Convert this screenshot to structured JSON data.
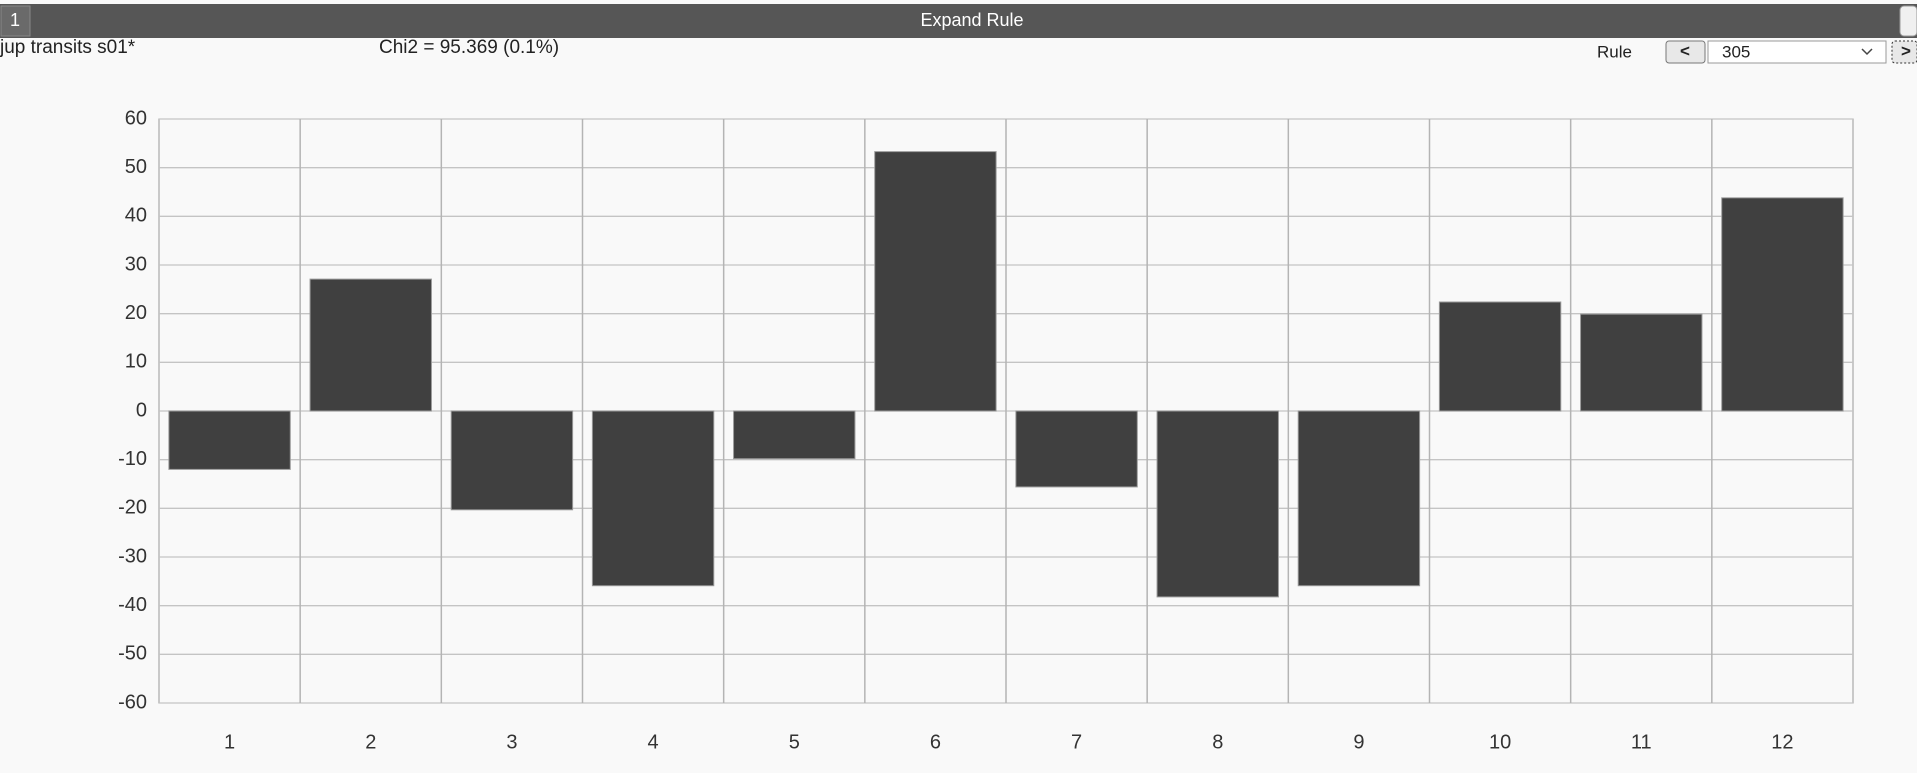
{
  "window": {
    "number": "1",
    "title": "Expand Rule"
  },
  "toolbar": {
    "dataset": "jup transits s01*",
    "stat": "Chi2 = 95.369 (0.1%)",
    "rule_label": "Rule",
    "prev": "<",
    "rule_value": "305",
    "next": ">"
  },
  "chart_data": {
    "type": "bar",
    "categories": [
      "1",
      "2",
      "3",
      "4",
      "5",
      "6",
      "7",
      "8",
      "9",
      "10",
      "11",
      "12"
    ],
    "values": [
      -12,
      27.1,
      -20.3,
      -35.9,
      -9.8,
      53.3,
      -15.6,
      -38.2,
      -35.9,
      22.4,
      19.9,
      43.8
    ],
    "color": "#404040",
    "ylim": [
      -60,
      60
    ],
    "yticks": [
      -60,
      -50,
      -40,
      -30,
      -20,
      -10,
      0,
      10,
      20,
      30,
      40,
      50,
      60
    ],
    "grid": true
  }
}
